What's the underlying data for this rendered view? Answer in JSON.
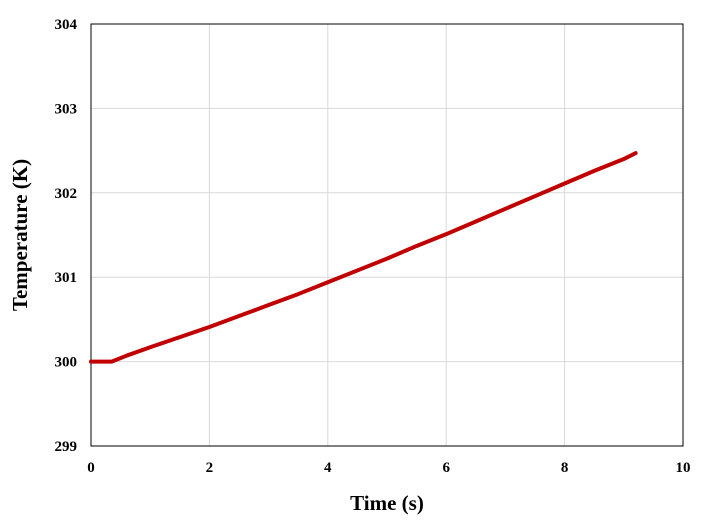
{
  "chart_data": {
    "type": "line",
    "title": "",
    "xlabel": "Time (s)",
    "ylabel": "Temperature (K)",
    "xlim": [
      0,
      10
    ],
    "ylim": [
      299,
      304
    ],
    "xticks": [
      0,
      2,
      4,
      6,
      8,
      10
    ],
    "yticks": [
      299,
      300,
      301,
      302,
      303,
      304
    ],
    "xtick_labels": [
      "0",
      "2",
      "4",
      "6",
      "8",
      "10"
    ],
    "ytick_labels": [
      "299",
      "300",
      "301",
      "302",
      "303",
      "304"
    ],
    "grid": true,
    "legend": "none",
    "series": [
      {
        "color": "#c00000",
        "x": [
          0.0,
          0.35,
          0.6,
          1.0,
          1.5,
          2.0,
          2.5,
          3.0,
          3.5,
          4.0,
          4.5,
          5.0,
          5.5,
          6.0,
          6.5,
          7.0,
          7.5,
          8.0,
          8.5,
          9.0,
          9.2
        ],
        "y": [
          300.0,
          300.0,
          300.07,
          300.17,
          300.29,
          300.41,
          300.54,
          300.67,
          300.8,
          300.94,
          301.08,
          301.22,
          301.37,
          301.51,
          301.66,
          301.81,
          301.96,
          302.11,
          302.26,
          302.4,
          302.47
        ]
      }
    ]
  }
}
